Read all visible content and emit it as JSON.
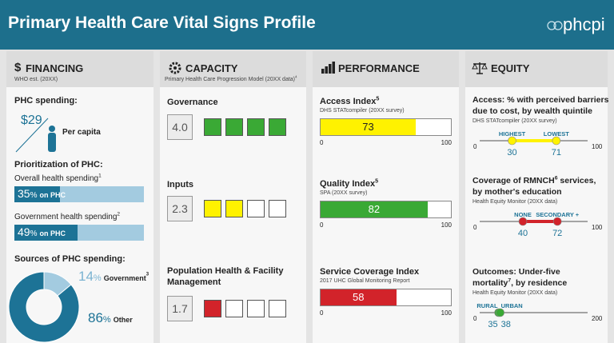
{
  "header": {
    "title": "Primary Health Care Vital Signs Profile",
    "logo": "phcpi"
  },
  "financing": {
    "icon": "$",
    "title": "FINANCING",
    "source": "WHO est. (20XX)",
    "phc_spending": {
      "label": "PHC spending:",
      "currency": "$",
      "value": 29,
      "per": "Per capita"
    },
    "prioritization": {
      "label": "Prioritization of PHC:",
      "items": [
        {
          "label": "Overall health spending",
          "note": "1",
          "value": 35,
          "unit": "%",
          "suffix": "on PHC"
        },
        {
          "label": "Government health spending",
          "note": "2",
          "value": 49,
          "unit": "%",
          "suffix": "on PHC"
        }
      ]
    },
    "sources": {
      "label": "Sources of PHC spending:",
      "items": [
        {
          "label": "Government",
          "note": "3",
          "value": 14,
          "unit": "%",
          "color": "#a3cbe0"
        },
        {
          "label": "Other",
          "value": 86,
          "unit": "%",
          "color": "#1d7396"
        }
      ]
    }
  },
  "capacity": {
    "title": "CAPACITY",
    "source": "Primary Health Care Progression Model (20XX data)",
    "note": "4",
    "squares": 4,
    "items": [
      {
        "label": "Governance",
        "score": {
          "value": 4,
          "label": "4.0"
        },
        "color": "#3aa935"
      },
      {
        "label": "Inputs",
        "score": {
          "value": 2.3,
          "label": "2.3"
        },
        "color": "#fff200"
      },
      {
        "label": "Population Health & Facility Management",
        "score": {
          "value": 1.7,
          "label": "1.7"
        },
        "color": "#d2232a"
      }
    ]
  },
  "performance": {
    "title": "PERFORMANCE",
    "items": [
      {
        "title": "Access Index",
        "note": "5",
        "source": "DHS STATcompiler (20XX survey)",
        "value": 73,
        "color": "#fff200",
        "scale": [
          0,
          100
        ]
      },
      {
        "title": "Quality Index",
        "note": "5",
        "source": "SPA (20XX survey)",
        "value": 82,
        "color": "#3aa935",
        "scale": [
          0,
          100
        ]
      },
      {
        "title": "Service Coverage Index",
        "source": "2017 UHC Global Monitoring Report",
        "value": 58,
        "color": "#d2232a",
        "scale": [
          0,
          100
        ]
      }
    ]
  },
  "equity": {
    "title": "EQUITY",
    "items": [
      {
        "title_lines": [
          {
            "text": "Access: % with perceived barriers"
          },
          {
            "text": "due to cost, by wealth quintile"
          }
        ],
        "source": "DHS STATcompiler (20XX survey)",
        "color": "#fff200",
        "scale": [
          0,
          100
        ],
        "points": [
          {
            "label": "HIGHEST",
            "value": 30
          },
          {
            "label": "LOWEST",
            "value": 71
          }
        ]
      },
      {
        "title_lines": [
          {
            "text": "Coverage of RMNCH",
            "sup": "6",
            "after": " services,"
          },
          {
            "text": "by mother's education"
          }
        ],
        "source": "Health Equity Monitor (20XX data)",
        "color": "#d2232a",
        "scale": [
          0,
          100
        ],
        "points": [
          {
            "label": "NONE",
            "value": 40
          },
          {
            "label": "SECONDARY +",
            "value": 72
          }
        ]
      },
      {
        "title_lines": [
          {
            "text": "Outcomes: Under-five"
          },
          {
            "text": "mortality",
            "sup": "7",
            "after": ", by residence"
          }
        ],
        "source": "Health Equity Monitor (20XX data)",
        "color": "#3aa935",
        "scale": [
          0,
          200
        ],
        "points": [
          {
            "label": "RURAL",
            "value": 35
          },
          {
            "label": "URBAN",
            "value": 38
          }
        ]
      }
    ]
  }
}
